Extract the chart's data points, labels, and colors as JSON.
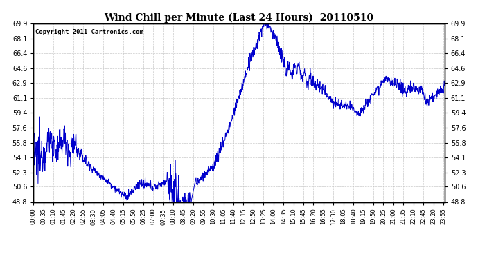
{
  "title": "Wind Chill per Minute (Last 24 Hours)  20110510",
  "copyright": "Copyright 2011 Cartronics.com",
  "y_ticks": [
    48.8,
    50.6,
    52.3,
    54.1,
    55.8,
    57.6,
    59.4,
    61.1,
    62.9,
    64.6,
    66.4,
    68.1,
    69.9
  ],
  "ylim": [
    48.8,
    69.9
  ],
  "line_color": "#0000cc",
  "bg_color": "#ffffff",
  "grid_color": "#bbbbbb",
  "title_color": "#000000",
  "x_labels": [
    "00:00",
    "00:35",
    "01:10",
    "01:45",
    "02:20",
    "02:55",
    "03:30",
    "04:05",
    "04:40",
    "05:15",
    "05:50",
    "06:25",
    "07:00",
    "07:35",
    "08:10",
    "08:45",
    "09:20",
    "09:55",
    "10:30",
    "11:05",
    "11:40",
    "12:15",
    "12:50",
    "13:25",
    "14:00",
    "14:35",
    "15:10",
    "15:45",
    "16:20",
    "16:55",
    "17:30",
    "18:05",
    "18:40",
    "19:15",
    "19:50",
    "20:25",
    "21:00",
    "21:35",
    "22:10",
    "22:45",
    "23:20",
    "23:55"
  ]
}
